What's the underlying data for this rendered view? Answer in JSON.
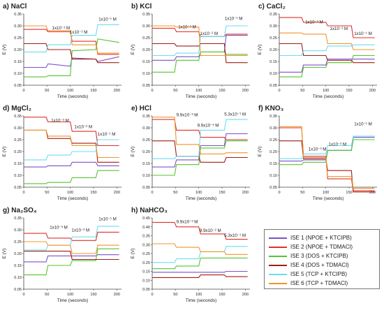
{
  "chart_data": [
    {
      "type": "line",
      "title": "a) NaCl",
      "xlabel": "Time (seconds)",
      "ylabel": "E (V)",
      "xlim": [
        0,
        210
      ],
      "ylim": [
        0.05,
        0.35
      ],
      "xticks": [
        0,
        50,
        100,
        150,
        200
      ],
      "yticks": [
        0.05,
        0.1,
        0.15,
        0.2,
        0.25,
        0.3,
        0.35
      ],
      "x": [
        0,
        48,
        52,
        100,
        104,
        155,
        159,
        205
      ],
      "annotations": [
        {
          "text": "1x10⁻³ M",
          "x": 80,
          "y": 0.285
        },
        {
          "text": "1x10⁻² M",
          "x": 118,
          "y": 0.268
        },
        {
          "text": "1x10⁻¹ M",
          "x": 180,
          "y": 0.322
        }
      ],
      "series": [
        {
          "color": "#7b52c8",
          "values": [
            0.125,
            0.125,
            0.14,
            0.13,
            0.165,
            0.16,
            0.15,
            0.17
          ]
        },
        {
          "color": "#e0302a",
          "values": [
            0.285,
            0.285,
            0.275,
            0.275,
            0.235,
            0.235,
            0.18,
            0.18
          ]
        },
        {
          "color": "#55c431",
          "values": [
            0.085,
            0.085,
            0.09,
            0.09,
            0.195,
            0.2,
            0.245,
            0.23
          ]
        },
        {
          "color": "#a01e16",
          "values": [
            0.225,
            0.225,
            0.2,
            0.2,
            0.16,
            0.16,
            0.145,
            0.145
          ]
        },
        {
          "color": "#6edcf0",
          "values": [
            0.19,
            0.19,
            0.22,
            0.22,
            0.26,
            0.26,
            0.305,
            0.305
          ]
        },
        {
          "color": "#f0952a",
          "values": [
            0.3,
            0.3,
            0.28,
            0.28,
            0.22,
            0.22,
            0.185,
            0.185
          ]
        }
      ]
    },
    {
      "type": "line",
      "title": "b) KCl",
      "xlabel": "Time (seconds)",
      "ylabel": "E (V)",
      "xlim": [
        0,
        210
      ],
      "ylim": [
        0.05,
        0.35
      ],
      "xticks": [
        0,
        50,
        100,
        150,
        200
      ],
      "yticks": [
        0.05,
        0.1,
        0.15,
        0.2,
        0.25,
        0.3,
        0.35
      ],
      "x": [
        0,
        48,
        52,
        100,
        104,
        155,
        159,
        205
      ],
      "annotations": [
        {
          "text": "1x10⁻³ M",
          "x": 75,
          "y": 0.29
        },
        {
          "text": "1x10⁻² M",
          "x": 122,
          "y": 0.262
        },
        {
          "text": "1x10⁻¹ M",
          "x": 175,
          "y": 0.325
        }
      ],
      "series": [
        {
          "color": "#7b52c8",
          "values": [
            0.155,
            0.155,
            0.17,
            0.17,
            0.19,
            0.19,
            0.26,
            0.26
          ]
        },
        {
          "color": "#e0302a",
          "values": [
            0.29,
            0.29,
            0.275,
            0.275,
            0.255,
            0.255,
            0.265,
            0.265
          ]
        },
        {
          "color": "#55c431",
          "values": [
            0.105,
            0.105,
            0.155,
            0.155,
            0.19,
            0.19,
            0.18,
            0.18
          ]
        },
        {
          "color": "#a01e16",
          "values": [
            0.225,
            0.225,
            0.215,
            0.215,
            0.225,
            0.225,
            0.145,
            0.145
          ]
        },
        {
          "color": "#6edcf0",
          "values": [
            0.175,
            0.175,
            0.185,
            0.185,
            0.255,
            0.255,
            0.3,
            0.3
          ]
        },
        {
          "color": "#f0952a",
          "values": [
            0.3,
            0.3,
            0.295,
            0.295,
            0.175,
            0.175,
            0.175,
            0.175
          ]
        }
      ]
    },
    {
      "type": "line",
      "title": "c) CaCl₂",
      "xlabel": "Time (seconds)",
      "ylabel": "E (V)",
      "xlim": [
        0,
        210
      ],
      "ylim": [
        0.05,
        0.35
      ],
      "xticks": [
        0,
        50,
        100,
        150,
        200
      ],
      "yticks": [
        0.05,
        0.1,
        0.15,
        0.2,
        0.25,
        0.3,
        0.35
      ],
      "x": [
        0,
        48,
        52,
        100,
        104,
        155,
        159,
        205
      ],
      "annotations": [
        {
          "text": "1x10⁻³ M",
          "x": 75,
          "y": 0.31
        },
        {
          "text": "1x10⁻² M",
          "x": 128,
          "y": 0.282
        },
        {
          "text": "1x10⁻¹ M",
          "x": 180,
          "y": 0.262
        }
      ],
      "series": [
        {
          "color": "#7b52c8",
          "values": [
            0.105,
            0.105,
            0.135,
            0.135,
            0.16,
            0.16,
            0.16,
            0.16
          ]
        },
        {
          "color": "#e0302a",
          "values": [
            0.335,
            0.335,
            0.315,
            0.315,
            0.3,
            0.3,
            0.25,
            0.25
          ]
        },
        {
          "color": "#55c431",
          "values": [
            0.085,
            0.085,
            0.125,
            0.125,
            0.145,
            0.145,
            0.175,
            0.175
          ]
        },
        {
          "color": "#a01e16",
          "values": [
            0.225,
            0.225,
            0.175,
            0.175,
            0.155,
            0.155,
            0.145,
            0.145
          ]
        },
        {
          "color": "#6edcf0",
          "values": [
            0.175,
            0.175,
            0.195,
            0.195,
            0.215,
            0.215,
            0.22,
            0.22
          ]
        },
        {
          "color": "#f0952a",
          "values": [
            0.27,
            0.27,
            0.265,
            0.265,
            0.225,
            0.225,
            0.2,
            0.2
          ]
        }
      ]
    },
    {
      "type": "line",
      "title": "d) MgCl₂",
      "xlabel": "Time (seconds)",
      "ylabel": "E (V)",
      "xlim": [
        0,
        210
      ],
      "ylim": [
        0.05,
        0.35
      ],
      "xticks": [
        0,
        50,
        100,
        150,
        200
      ],
      "yticks": [
        0.05,
        0.1,
        0.15,
        0.2,
        0.25,
        0.3,
        0.35
      ],
      "x": [
        0,
        48,
        52,
        100,
        104,
        155,
        159,
        205
      ],
      "annotations": [
        {
          "text": "1x10⁻³ M",
          "x": 78,
          "y": 0.325
        },
        {
          "text": "1x10⁻² M",
          "x": 128,
          "y": 0.298
        },
        {
          "text": "1x10⁻¹ M",
          "x": 178,
          "y": 0.268
        }
      ],
      "series": [
        {
          "color": "#7b52c8",
          "values": [
            0.135,
            0.135,
            0.14,
            0.14,
            0.155,
            0.155,
            0.14,
            0.14
          ]
        },
        {
          "color": "#e0302a",
          "values": [
            0.345,
            0.345,
            0.325,
            0.325,
            0.285,
            0.285,
            0.225,
            0.225
          ]
        },
        {
          "color": "#55c431",
          "values": [
            0.065,
            0.065,
            0.07,
            0.07,
            0.09,
            0.09,
            0.12,
            0.12
          ]
        },
        {
          "color": "#a01e16",
          "values": [
            0.29,
            0.29,
            0.255,
            0.255,
            0.235,
            0.235,
            0.155,
            0.155
          ]
        },
        {
          "color": "#6edcf0",
          "values": [
            0.165,
            0.165,
            0.185,
            0.185,
            0.2,
            0.2,
            0.25,
            0.25
          ]
        },
        {
          "color": "#f0952a",
          "values": [
            0.29,
            0.29,
            0.265,
            0.265,
            0.225,
            0.225,
            0.175,
            0.175
          ]
        }
      ]
    },
    {
      "type": "line",
      "title": "e) HCl",
      "xlabel": "Time (seconds)",
      "ylabel": "E (V)",
      "xlim": [
        0,
        210
      ],
      "ylim": [
        0.05,
        0.35
      ],
      "xticks": [
        0,
        50,
        100,
        150,
        200
      ],
      "yticks": [
        0.05,
        0.1,
        0.15,
        0.2,
        0.25,
        0.3,
        0.35
      ],
      "x": [
        0,
        48,
        52,
        100,
        104,
        155,
        159,
        205
      ],
      "annotations": [
        {
          "text": "9.9x10⁻³ M",
          "x": 75,
          "y": 0.348
        },
        {
          "text": "9.9x10⁻² M",
          "x": 120,
          "y": 0.305
        },
        {
          "text": "5.3x10⁻¹ M",
          "x": 178,
          "y": 0.352
        }
      ],
      "series": [
        {
          "color": "#7b52c8",
          "values": [
            0.135,
            0.135,
            0.165,
            0.165,
            0.225,
            0.225,
            0.275,
            0.275
          ]
        },
        {
          "color": "#e0302a",
          "values": [
            0.335,
            0.335,
            0.29,
            0.29,
            0.26,
            0.26,
            0.25,
            0.25
          ]
        },
        {
          "color": "#55c431",
          "values": [
            0.1,
            0.1,
            0.145,
            0.145,
            0.215,
            0.215,
            0.245,
            0.245
          ]
        },
        {
          "color": "#a01e16",
          "values": [
            0.245,
            0.245,
            0.18,
            0.18,
            0.155,
            0.155,
            0.175,
            0.175
          ]
        },
        {
          "color": "#6edcf0",
          "values": [
            0.17,
            0.17,
            0.18,
            0.18,
            0.29,
            0.29,
            0.335,
            0.335
          ]
        },
        {
          "color": "#f0952a",
          "values": [
            0.345,
            0.345,
            0.23,
            0.23,
            0.19,
            0.19,
            0.195,
            0.195
          ]
        }
      ]
    },
    {
      "type": "line",
      "title": "f) KNO₃",
      "xlabel": "Time (seconds)",
      "ylabel": "E (V)",
      "xlim": [
        0,
        210
      ],
      "ylim": [
        0.05,
        0.35
      ],
      "xticks": [
        0,
        50,
        100,
        150,
        200
      ],
      "yticks": [
        0.05,
        0.1,
        0.15,
        0.2,
        0.25,
        0.3,
        0.35
      ],
      "x": [
        0,
        48,
        52,
        100,
        104,
        155,
        159,
        205
      ],
      "annotations": [
        {
          "text": "1x10⁻³ M",
          "x": 82,
          "y": 0.205
        },
        {
          "text": "1x10⁻² M",
          "x": 125,
          "y": 0.225
        },
        {
          "text": "1x10⁻¹ M",
          "x": 180,
          "y": 0.31
        }
      ],
      "series": [
        {
          "color": "#7b52c8",
          "values": [
            0.16,
            0.16,
            0.165,
            0.165,
            0.205,
            0.205,
            0.26,
            0.26
          ]
        },
        {
          "color": "#e0302a",
          "values": [
            0.3,
            0.3,
            0.18,
            0.18,
            0.085,
            0.085,
            0.035,
            0.035
          ]
        },
        {
          "color": "#55c431",
          "values": [
            0.145,
            0.145,
            0.155,
            0.155,
            0.205,
            0.205,
            0.25,
            0.25
          ]
        },
        {
          "color": "#a01e16",
          "values": [
            0.245,
            0.245,
            0.17,
            0.17,
            0.12,
            0.12,
            0.03,
            0.03
          ]
        },
        {
          "color": "#6edcf0",
          "values": [
            0.17,
            0.17,
            0.19,
            0.19,
            0.225,
            0.225,
            0.265,
            0.265
          ]
        },
        {
          "color": "#f0952a",
          "values": [
            0.305,
            0.305,
            0.175,
            0.175,
            0.095,
            0.095,
            0.045,
            0.045
          ]
        }
      ]
    },
    {
      "type": "line",
      "title": "g) Na₂SO₄",
      "xlabel": "Time (seconds)",
      "ylabel": "E (V)",
      "xlim": [
        0,
        210
      ],
      "ylim": [
        0.05,
        0.35
      ],
      "xticks": [
        0,
        50,
        100,
        150,
        200
      ],
      "yticks": [
        0.05,
        0.1,
        0.15,
        0.2,
        0.25,
        0.3,
        0.35
      ],
      "x": [
        0,
        48,
        52,
        100,
        104,
        155,
        159,
        205
      ],
      "annotations": [
        {
          "text": "1x10⁻³ M",
          "x": 75,
          "y": 0.305
        },
        {
          "text": "1x10⁻² M",
          "x": 122,
          "y": 0.292
        },
        {
          "text": "1x10⁻¹ M",
          "x": 180,
          "y": 0.34
        }
      ],
      "series": [
        {
          "color": "#7b52c8",
          "values": [
            0.165,
            0.165,
            0.19,
            0.19,
            0.19,
            0.19,
            0.195,
            0.195
          ]
        },
        {
          "color": "#e0302a",
          "values": [
            0.285,
            0.285,
            0.265,
            0.265,
            0.255,
            0.255,
            0.29,
            0.29
          ]
        },
        {
          "color": "#55c431",
          "values": [
            0.11,
            0.11,
            0.15,
            0.15,
            0.17,
            0.17,
            0.22,
            0.22
          ]
        },
        {
          "color": "#a01e16",
          "values": [
            0.21,
            0.21,
            0.21,
            0.21,
            0.175,
            0.175,
            0.175,
            0.175
          ]
        },
        {
          "color": "#6edcf0",
          "values": [
            0.215,
            0.215,
            0.235,
            0.235,
            0.27,
            0.27,
            0.315,
            0.315
          ]
        },
        {
          "color": "#f0952a",
          "values": [
            0.25,
            0.25,
            0.235,
            0.235,
            0.2,
            0.2,
            0.235,
            0.235
          ]
        }
      ]
    },
    {
      "type": "line",
      "title": "h) NaHCO₃",
      "xlabel": "Time (seconds)",
      "ylabel": "E (V)",
      "xlim": [
        0,
        210
      ],
      "ylim": [
        0.05,
        0.45
      ],
      "xticks": [
        0,
        50,
        100,
        150,
        200
      ],
      "yticks": [
        0.05,
        0.1,
        0.15,
        0.2,
        0.25,
        0.3,
        0.35,
        0.4,
        0.45
      ],
      "x": [
        0,
        48,
        52,
        100,
        104,
        155,
        159,
        205
      ],
      "annotations": [
        {
          "text": "9.9x10⁻³ M",
          "x": 75,
          "y": 0.42
        },
        {
          "text": "9.9x10⁻² M",
          "x": 125,
          "y": 0.372
        },
        {
          "text": "5.3x10⁻¹ M",
          "x": 178,
          "y": 0.345
        }
      ],
      "series": [
        {
          "color": "#7b52c8",
          "values": [
            0.145,
            0.145,
            0.145,
            0.145,
            0.145,
            0.145,
            0.15,
            0.15
          ]
        },
        {
          "color": "#e0302a",
          "values": [
            0.425,
            0.425,
            0.4,
            0.4,
            0.36,
            0.36,
            0.33,
            0.33
          ]
        },
        {
          "color": "#55c431",
          "values": [
            0.165,
            0.165,
            0.18,
            0.18,
            0.225,
            0.225,
            0.225,
            0.225
          ]
        },
        {
          "color": "#a01e16",
          "values": [
            0.115,
            0.115,
            0.115,
            0.115,
            0.13,
            0.13,
            0.12,
            0.12
          ]
        },
        {
          "color": "#6edcf0",
          "values": [
            0.2,
            0.2,
            0.22,
            0.22,
            0.26,
            0.26,
            0.29,
            0.29
          ]
        },
        {
          "color": "#f0952a",
          "values": [
            0.305,
            0.305,
            0.285,
            0.285,
            0.26,
            0.26,
            0.245,
            0.245
          ]
        }
      ]
    }
  ],
  "legend": [
    {
      "label": "ISE 1 (NPOE + KTCIPB)",
      "color": "#7b52c8"
    },
    {
      "label": "ISE 2 (NPOE + TDMACl)",
      "color": "#e0302a"
    },
    {
      "label": "ISE 3 (DOS + KTCIPB)",
      "color": "#55c431"
    },
    {
      "label": "ISE 4 (DOS + TDMACl)",
      "color": "#a01e16"
    },
    {
      "label": "ISE 5 (TCP + KTCIPB)",
      "color": "#6edcf0"
    },
    {
      "label": "ISE 6 (TCP + TDMACl)",
      "color": "#f0952a"
    }
  ]
}
